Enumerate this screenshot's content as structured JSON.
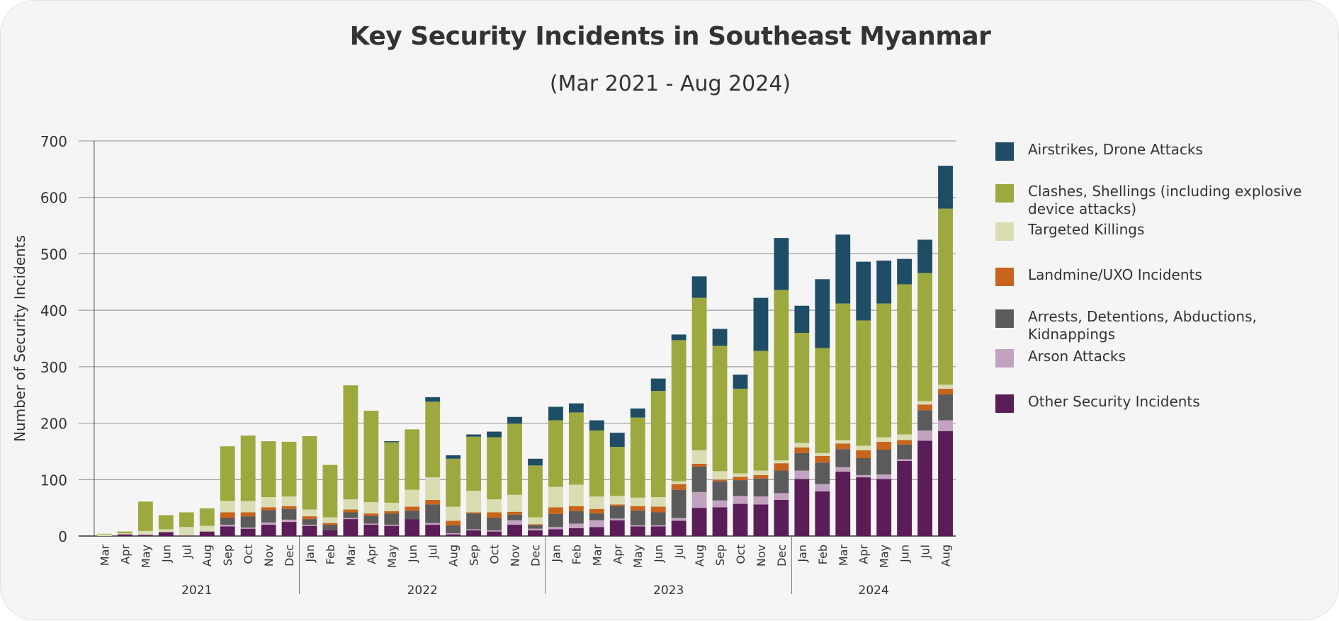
{
  "header": {
    "title": "Key Security Incidents in Southeast Myanmar",
    "subtitle": "(Mar 2021 - Aug 2024)"
  },
  "colors": {
    "other": "#5b1d57",
    "arson": "#c2a3bf",
    "arrests": "#5b5b5b",
    "landmine": "#c8641b",
    "killings": "#d9ddb1",
    "clashes": "#9da93f",
    "airstrikes": "#1f4d66"
  },
  "chart_data": {
    "type": "bar",
    "stacked": true,
    "title": "Key Security Incidents in Southeast Myanmar",
    "subtitle": "(Mar 2021 - Aug 2024)",
    "xlabel": "",
    "ylabel": "Number of Security Incidents",
    "ylim": [
      0,
      700
    ],
    "yticks": [
      0,
      100,
      200,
      300,
      400,
      500,
      600,
      700
    ],
    "grid": "horizontal",
    "legend_position": "right",
    "categories": [
      "Mar",
      "Apr",
      "May",
      "Jun",
      "Jul",
      "Aug",
      "Sep",
      "Oct",
      "Nov",
      "Dec",
      "Jan",
      "Feb",
      "Mar",
      "Apr",
      "May",
      "Jun",
      "Jul",
      "Aug",
      "Sep",
      "Oct",
      "Nov",
      "Dec",
      "Jan",
      "Feb",
      "Mar",
      "Apr",
      "May",
      "Jun",
      "Jul",
      "Aug",
      "Sep",
      "Oct",
      "Nov",
      "Dec",
      "Jan",
      "Feb",
      "Mar",
      "Apr",
      "May",
      "Jun",
      "Jul",
      "Aug"
    ],
    "year_groups": [
      {
        "label": "2021",
        "count": 10
      },
      {
        "label": "2022",
        "count": 12
      },
      {
        "label": "2023",
        "count": 12
      },
      {
        "label": "2024",
        "count": 8
      }
    ],
    "series": [
      {
        "name": "Other Security Incidents",
        "key": "other",
        "values": [
          0,
          3,
          2,
          7,
          1,
          8,
          17,
          13,
          20,
          25,
          18,
          10,
          30,
          20,
          18,
          30,
          20,
          3,
          10,
          8,
          20,
          10,
          12,
          14,
          16,
          28,
          17,
          17,
          27,
          50,
          51,
          57,
          56,
          64,
          101,
          79,
          114,
          104,
          101,
          133,
          169,
          186
        ]
      },
      {
        "name": "Arson Attacks",
        "key": "arson",
        "values": [
          0,
          0,
          0,
          0,
          0,
          0,
          3,
          2,
          4,
          4,
          2,
          0,
          2,
          2,
          2,
          0,
          3,
          2,
          2,
          2,
          8,
          3,
          4,
          8,
          12,
          3,
          2,
          2,
          5,
          28,
          12,
          14,
          14,
          12,
          15,
          13,
          8,
          4,
          8,
          3,
          18,
          19
        ]
      },
      {
        "name": "Arrests, Detentions, Abductions, Kidnappings",
        "key": "arrests",
        "values": [
          0,
          0,
          0,
          0,
          0,
          0,
          12,
          20,
          22,
          19,
          10,
          10,
          10,
          14,
          20,
          15,
          33,
          14,
          28,
          22,
          10,
          6,
          23,
          22,
          12,
          22,
          26,
          23,
          50,
          45,
          34,
          28,
          32,
          40,
          31,
          38,
          32,
          30,
          44,
          26,
          36,
          46
        ]
      },
      {
        "name": "Landmine/UXO Incidents",
        "key": "landmine",
        "values": [
          0,
          0,
          0,
          0,
          0,
          0,
          10,
          7,
          5,
          5,
          5,
          3,
          5,
          4,
          4,
          7,
          8,
          8,
          2,
          10,
          5,
          2,
          12,
          9,
          8,
          3,
          8,
          10,
          10,
          5,
          3,
          6,
          6,
          13,
          10,
          12,
          10,
          14,
          14,
          8,
          10,
          10
        ]
      },
      {
        "name": "Targeted Killings",
        "key": "killings",
        "values": [
          3,
          2,
          7,
          5,
          15,
          10,
          20,
          20,
          18,
          17,
          12,
          10,
          18,
          20,
          15,
          30,
          40,
          25,
          38,
          23,
          30,
          12,
          36,
          38,
          22,
          15,
          15,
          17,
          5,
          24,
          15,
          6,
          8,
          5,
          8,
          5,
          6,
          8,
          8,
          10,
          6,
          7
        ]
      },
      {
        "name": "Clashes, Shellings (including explosive device attacks)",
        "key": "clashes",
        "values": [
          1,
          3,
          52,
          25,
          26,
          31,
          97,
          116,
          99,
          97,
          130,
          93,
          202,
          162,
          107,
          107,
          134,
          85,
          96,
          110,
          126,
          92,
          118,
          128,
          117,
          87,
          142,
          188,
          250,
          270,
          222,
          150,
          212,
          302,
          195,
          186,
          242,
          222,
          237,
          266,
          227,
          312
        ]
      },
      {
        "name": "Airstrikes, Drone Attacks",
        "key": "airstrikes",
        "values": [
          0,
          0,
          0,
          0,
          0,
          0,
          0,
          0,
          0,
          0,
          0,
          0,
          0,
          0,
          2,
          0,
          8,
          6,
          4,
          10,
          12,
          12,
          24,
          16,
          18,
          25,
          16,
          22,
          10,
          38,
          30,
          25,
          94,
          92,
          48,
          122,
          122,
          104,
          76,
          45,
          59,
          76
        ]
      }
    ]
  }
}
